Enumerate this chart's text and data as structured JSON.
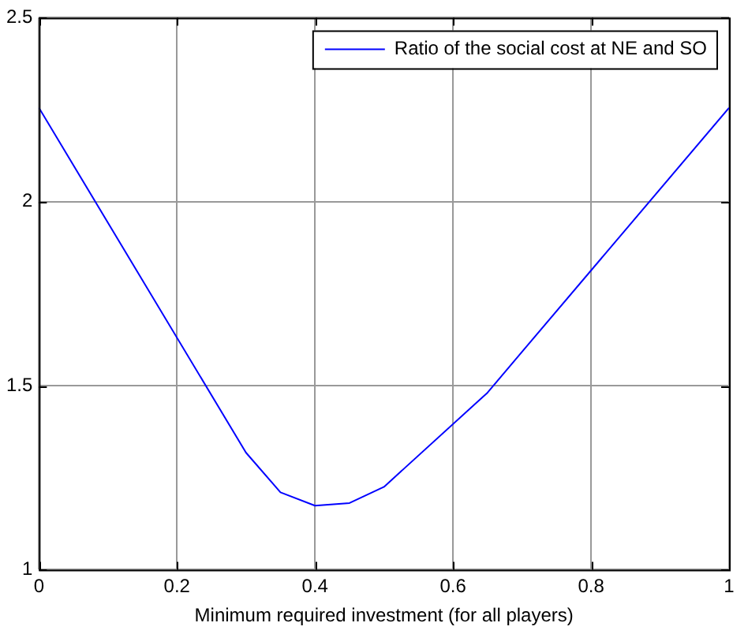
{
  "chart_data": {
    "type": "line",
    "xlabel": "Minimum required investment (for all players)",
    "x": [
      0,
      0.3,
      0.35,
      0.4,
      0.45,
      0.5,
      0.65,
      0.7,
      1
    ],
    "series": [
      {
        "name": "Ratio of the social cost at NE and SO",
        "color": "#0000ff",
        "values": [
          2.255,
          1.318,
          1.21,
          1.174,
          1.181,
          1.225,
          1.481,
          1.592,
          2.255
        ]
      }
    ],
    "xlim": [
      0,
      1
    ],
    "xticks": [
      0,
      0.2,
      0.4,
      0.6,
      0.8,
      1
    ],
    "ylim": [
      1,
      2.5
    ],
    "yticks": [
      1,
      1.5,
      2,
      2.5
    ],
    "grid": true,
    "legend": "top right",
    "marker": "none",
    "line_style": "solid"
  }
}
